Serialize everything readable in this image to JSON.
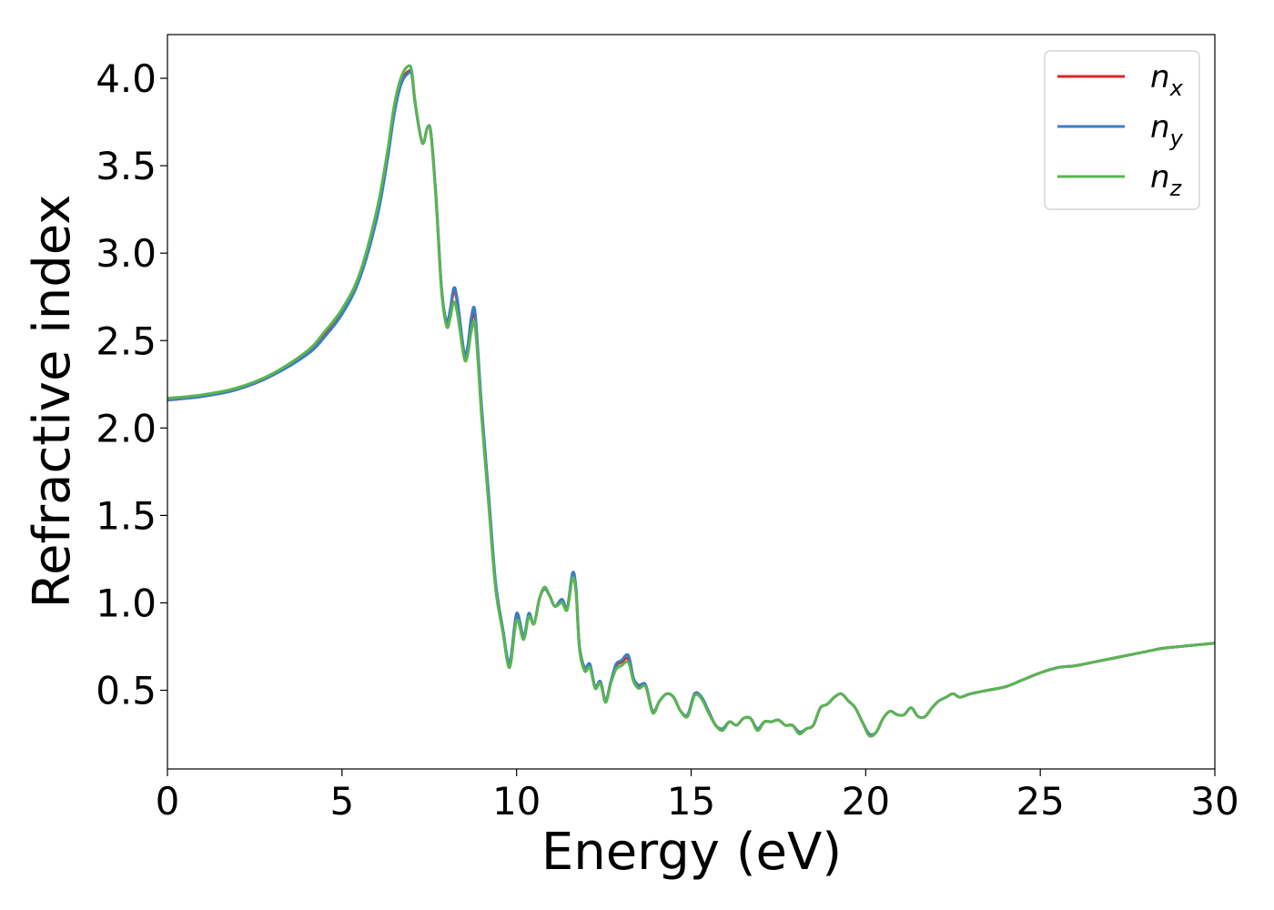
{
  "chart_data": {
    "type": "line",
    "title": "",
    "xlabel": "Energy (eV)",
    "ylabel": "Refractive index",
    "xlim": [
      0,
      30
    ],
    "ylim": [
      0.05,
      4.25
    ],
    "x_ticks": [
      0,
      5,
      10,
      15,
      20,
      25,
      30
    ],
    "y_ticks": [
      0.5,
      1.0,
      1.5,
      2.0,
      2.5,
      3.0,
      3.5,
      4.0
    ],
    "x_tick_labels": [
      "0",
      "5",
      "10",
      "15",
      "20",
      "25",
      "30"
    ],
    "y_tick_labels": [
      "0.5",
      "1.0",
      "1.5",
      "2.0",
      "2.5",
      "3.0",
      "3.5",
      "4.0"
    ],
    "grid": false,
    "legend_position": "top-right",
    "legend": [
      {
        "symbol": "n",
        "subscript": "x",
        "color": "#d62728"
      },
      {
        "symbol": "n",
        "subscript": "y",
        "color": "#3a7fc0"
      },
      {
        "symbol": "n",
        "subscript": "z",
        "color": "#5ab552"
      }
    ],
    "series": [
      {
        "color": "#d62728",
        "x": [
          0,
          1,
          2,
          3,
          4,
          4.5,
          5,
          5.5,
          6,
          6.3,
          6.5,
          6.7,
          6.9,
          7.0,
          7.1,
          7.3,
          7.45,
          7.55,
          7.7,
          7.85,
          8.0,
          8.1,
          8.2,
          8.3,
          8.5,
          8.6,
          8.7,
          8.8,
          8.9,
          9.0,
          9.2,
          9.4,
          9.6,
          9.8,
          10.0,
          10.2,
          10.35,
          10.5,
          10.65,
          10.8,
          10.95,
          11.1,
          11.3,
          11.45,
          11.6,
          11.7,
          11.8,
          11.95,
          12.1,
          12.25,
          12.4,
          12.55,
          12.7,
          12.85,
          13.0,
          13.2,
          13.35,
          13.5,
          13.7,
          13.9,
          14.1,
          14.3,
          14.5,
          14.7,
          14.9,
          15.1,
          15.3,
          15.5,
          15.7,
          15.9,
          16.1,
          16.3,
          16.5,
          16.7,
          16.9,
          17.1,
          17.3,
          17.5,
          17.7,
          17.9,
          18.1,
          18.3,
          18.5,
          18.7,
          18.9,
          19.1,
          19.3,
          19.5,
          19.7,
          19.9,
          20.1,
          20.3,
          20.5,
          20.7,
          20.9,
          21.1,
          21.3,
          21.5,
          21.7,
          21.9,
          22.1,
          22.3,
          22.5,
          22.7,
          23.0,
          23.5,
          24.0,
          24.5,
          25.0,
          25.5,
          26.0,
          26.5,
          27.0,
          27.5,
          28.0,
          28.5,
          29.0,
          29.5,
          30.0
        ],
        "y": [
          2.16,
          2.18,
          2.22,
          2.3,
          2.43,
          2.53,
          2.66,
          2.86,
          3.22,
          3.55,
          3.82,
          3.98,
          4.04,
          4.02,
          3.85,
          3.63,
          3.72,
          3.68,
          3.3,
          2.8,
          2.6,
          2.66,
          2.78,
          2.72,
          2.42,
          2.45,
          2.6,
          2.65,
          2.4,
          2.1,
          1.6,
          1.1,
          0.85,
          0.65,
          0.92,
          0.8,
          0.93,
          0.88,
          1.02,
          1.08,
          1.04,
          0.98,
          1.02,
          0.97,
          1.16,
          1.08,
          0.75,
          0.62,
          0.64,
          0.52,
          0.55,
          0.44,
          0.55,
          0.64,
          0.66,
          0.68,
          0.56,
          0.52,
          0.52,
          0.38,
          0.44,
          0.48,
          0.46,
          0.38,
          0.36,
          0.48,
          0.46,
          0.38,
          0.3,
          0.28,
          0.32,
          0.3,
          0.34,
          0.34,
          0.28,
          0.32,
          0.32,
          0.33,
          0.3,
          0.3,
          0.26,
          0.28,
          0.3,
          0.4,
          0.42,
          0.46,
          0.48,
          0.44,
          0.4,
          0.32,
          0.25,
          0.26,
          0.34,
          0.38,
          0.36,
          0.36,
          0.4,
          0.35,
          0.35,
          0.4,
          0.44,
          0.46,
          0.48,
          0.46,
          0.48,
          0.5,
          0.52,
          0.56,
          0.6,
          0.63,
          0.64,
          0.66,
          0.68,
          0.7,
          0.72,
          0.74,
          0.75,
          0.76,
          0.77
        ]
      },
      {
        "color": "#3a7fc0",
        "x": [
          0,
          1,
          2,
          3,
          4,
          4.5,
          5,
          5.5,
          6,
          6.3,
          6.5,
          6.7,
          6.9,
          7.0,
          7.1,
          7.3,
          7.45,
          7.55,
          7.7,
          7.85,
          8.0,
          8.1,
          8.2,
          8.3,
          8.5,
          8.6,
          8.7,
          8.8,
          8.9,
          9.0,
          9.2,
          9.4,
          9.6,
          9.8,
          10.0,
          10.2,
          10.35,
          10.5,
          10.65,
          10.8,
          10.95,
          11.1,
          11.3,
          11.45,
          11.6,
          11.7,
          11.8,
          11.95,
          12.1,
          12.25,
          12.4,
          12.55,
          12.7,
          12.85,
          13.0,
          13.2,
          13.35,
          13.5,
          13.7,
          13.9,
          14.1,
          14.3,
          14.5,
          14.7,
          14.9,
          15.1,
          15.3,
          15.5,
          15.7,
          15.9,
          16.1,
          16.3,
          16.5,
          16.7,
          16.9,
          17.1,
          17.3,
          17.5,
          17.7,
          17.9,
          18.1,
          18.3,
          18.5,
          18.7,
          18.9,
          19.1,
          19.3,
          19.5,
          19.7,
          19.9,
          20.1,
          20.3,
          20.5,
          20.7,
          20.9,
          21.1,
          21.3,
          21.5,
          21.7,
          21.9,
          22.1,
          22.3,
          22.5,
          22.7,
          23.0,
          23.5,
          24.0,
          24.5,
          25.0,
          25.5,
          26.0,
          26.5,
          27.0,
          27.5,
          28.0,
          28.5,
          29.0,
          29.5,
          30.0
        ],
        "y": [
          2.16,
          2.18,
          2.22,
          2.3,
          2.42,
          2.52,
          2.65,
          2.85,
          3.2,
          3.53,
          3.8,
          3.97,
          4.03,
          4.02,
          3.85,
          3.63,
          3.72,
          3.68,
          3.3,
          2.8,
          2.61,
          2.68,
          2.8,
          2.74,
          2.43,
          2.47,
          2.63,
          2.68,
          2.42,
          2.12,
          1.62,
          1.12,
          0.86,
          0.66,
          0.94,
          0.81,
          0.94,
          0.88,
          1.02,
          1.08,
          1.04,
          0.98,
          1.02,
          0.97,
          1.17,
          1.09,
          0.76,
          0.63,
          0.65,
          0.52,
          0.55,
          0.44,
          0.55,
          0.65,
          0.67,
          0.7,
          0.57,
          0.53,
          0.53,
          0.38,
          0.44,
          0.48,
          0.46,
          0.38,
          0.36,
          0.48,
          0.46,
          0.38,
          0.3,
          0.28,
          0.32,
          0.3,
          0.34,
          0.34,
          0.28,
          0.32,
          0.32,
          0.33,
          0.3,
          0.3,
          0.26,
          0.28,
          0.3,
          0.4,
          0.42,
          0.46,
          0.48,
          0.44,
          0.4,
          0.32,
          0.25,
          0.26,
          0.34,
          0.38,
          0.36,
          0.36,
          0.4,
          0.35,
          0.35,
          0.4,
          0.44,
          0.46,
          0.48,
          0.46,
          0.48,
          0.5,
          0.52,
          0.56,
          0.6,
          0.63,
          0.64,
          0.66,
          0.68,
          0.7,
          0.72,
          0.74,
          0.75,
          0.76,
          0.77
        ]
      },
      {
        "color": "#5ab552",
        "x": [
          0,
          1,
          2,
          3,
          4,
          4.5,
          5,
          5.5,
          6,
          6.3,
          6.5,
          6.7,
          6.9,
          7.0,
          7.1,
          7.3,
          7.45,
          7.55,
          7.7,
          7.85,
          8.0,
          8.1,
          8.2,
          8.3,
          8.5,
          8.6,
          8.7,
          8.8,
          8.9,
          9.0,
          9.2,
          9.4,
          9.6,
          9.8,
          10.0,
          10.2,
          10.35,
          10.5,
          10.65,
          10.8,
          10.95,
          11.1,
          11.3,
          11.45,
          11.6,
          11.7,
          11.8,
          11.95,
          12.1,
          12.25,
          12.4,
          12.55,
          12.7,
          12.85,
          13.0,
          13.2,
          13.35,
          13.5,
          13.7,
          13.9,
          14.1,
          14.3,
          14.5,
          14.7,
          14.9,
          15.1,
          15.3,
          15.5,
          15.7,
          15.9,
          16.1,
          16.3,
          16.5,
          16.7,
          16.9,
          17.1,
          17.3,
          17.5,
          17.7,
          17.9,
          18.1,
          18.3,
          18.5,
          18.7,
          18.9,
          19.1,
          19.3,
          19.5,
          19.7,
          19.9,
          20.1,
          20.3,
          20.5,
          20.7,
          20.9,
          21.1,
          21.3,
          21.5,
          21.7,
          21.9,
          22.1,
          22.3,
          22.5,
          22.7,
          23.0,
          23.5,
          24.0,
          24.5,
          25.0,
          25.5,
          26.0,
          26.5,
          27.0,
          27.5,
          28.0,
          28.5,
          29.0,
          29.5,
          30.0
        ],
        "y": [
          2.17,
          2.19,
          2.23,
          2.31,
          2.44,
          2.55,
          2.68,
          2.88,
          3.25,
          3.58,
          3.85,
          4.01,
          4.07,
          4.04,
          3.86,
          3.63,
          3.72,
          3.67,
          3.28,
          2.78,
          2.58,
          2.63,
          2.72,
          2.66,
          2.4,
          2.42,
          2.55,
          2.6,
          2.36,
          2.06,
          1.56,
          1.08,
          0.84,
          0.63,
          0.9,
          0.79,
          0.92,
          0.88,
          1.02,
          1.09,
          1.04,
          0.98,
          1.0,
          0.96,
          1.14,
          1.06,
          0.74,
          0.61,
          0.63,
          0.51,
          0.54,
          0.43,
          0.54,
          0.62,
          0.64,
          0.66,
          0.55,
          0.51,
          0.52,
          0.37,
          0.44,
          0.48,
          0.46,
          0.38,
          0.35,
          0.47,
          0.45,
          0.37,
          0.3,
          0.27,
          0.32,
          0.3,
          0.34,
          0.34,
          0.27,
          0.32,
          0.32,
          0.33,
          0.3,
          0.3,
          0.25,
          0.28,
          0.3,
          0.4,
          0.42,
          0.46,
          0.48,
          0.44,
          0.4,
          0.32,
          0.24,
          0.26,
          0.34,
          0.38,
          0.36,
          0.36,
          0.4,
          0.35,
          0.35,
          0.4,
          0.44,
          0.46,
          0.48,
          0.46,
          0.48,
          0.5,
          0.52,
          0.56,
          0.6,
          0.63,
          0.64,
          0.66,
          0.68,
          0.7,
          0.72,
          0.74,
          0.75,
          0.76,
          0.77
        ]
      }
    ]
  }
}
